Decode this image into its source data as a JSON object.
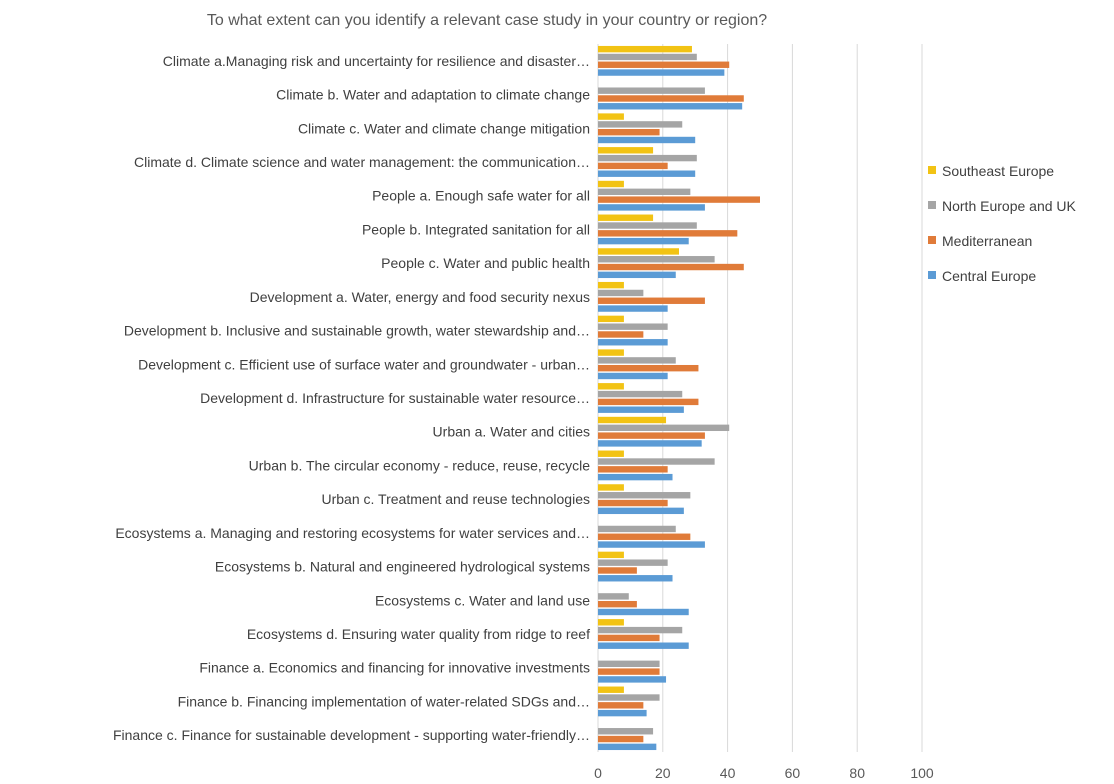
{
  "chart_data": {
    "type": "bar",
    "orientation": "horizontal",
    "title": "To what extent can you identify a relevant case study in your country or region?",
    "xlabel": "",
    "ylabel": "",
    "xlim": [
      0,
      100
    ],
    "xticks": [
      0,
      20,
      40,
      60,
      80,
      100
    ],
    "grid": "vertical",
    "legend_position": "right",
    "categories": [
      "Climate a.Managing risk and uncertainty for resilience and disaster…",
      "Climate b. Water and adaptation to climate change",
      "Climate c. Water and climate change mitigation",
      "Climate d. Climate science and water management: the communication…",
      "People a. Enough safe water for all",
      "People b. Integrated sanitation for all",
      "People c. Water and public health",
      "Development a.  Water, energy and food security nexus",
      "Development b. Inclusive and sustainable growth, water stewardship and…",
      "Development c. Efficient use of surface water and groundwater - urban…",
      "Development d. Infrastructure for sustainable water resource…",
      "Urban a. Water and cities",
      "Urban b. The circular economy - reduce, reuse, recycle",
      "Urban c. Treatment and reuse technologies",
      "Ecosystems a. Managing and restoring ecosystems for water services and…",
      "Ecosystems b. Natural and engineered hydrological systems",
      "Ecosystems c. Water and land use",
      "Ecosystems d. Ensuring water quality from ridge to reef",
      "Finance a. Economics and financing for innovative investments",
      "Finance b. Financing implementation of water-related SDGs and…",
      "Finance c. Finance for sustainable development - supporting water-friendly…"
    ],
    "series": [
      {
        "name": "Southeast Europe",
        "color": "#f2c314",
        "values": [
          29,
          0,
          8,
          17,
          8,
          17,
          25,
          8,
          8,
          8,
          8,
          21,
          8,
          8,
          0,
          8,
          0,
          8,
          0,
          8,
          0
        ]
      },
      {
        "name": "North Europe and UK",
        "color": "#a5a5a5",
        "values": [
          30.5,
          33,
          26,
          30.5,
          28.5,
          30.5,
          36,
          14,
          21.5,
          24,
          26,
          40.5,
          36,
          28.5,
          24,
          21.5,
          9.5,
          26,
          19,
          19,
          17
        ]
      },
      {
        "name": "Mediterranean",
        "color": "#e07b39",
        "values": [
          40.5,
          45,
          19,
          21.5,
          50,
          43,
          45,
          33,
          14,
          31,
          31,
          33,
          21.5,
          21.5,
          28.5,
          12,
          12,
          19,
          19,
          14,
          14
        ]
      },
      {
        "name": "Central Europe",
        "color": "#5b9bd5",
        "values": [
          39,
          44.5,
          30,
          30,
          33,
          28,
          24,
          21.5,
          21.5,
          21.5,
          26.5,
          32,
          23,
          26.5,
          33,
          23,
          28,
          28,
          21,
          15,
          18
        ]
      }
    ]
  }
}
